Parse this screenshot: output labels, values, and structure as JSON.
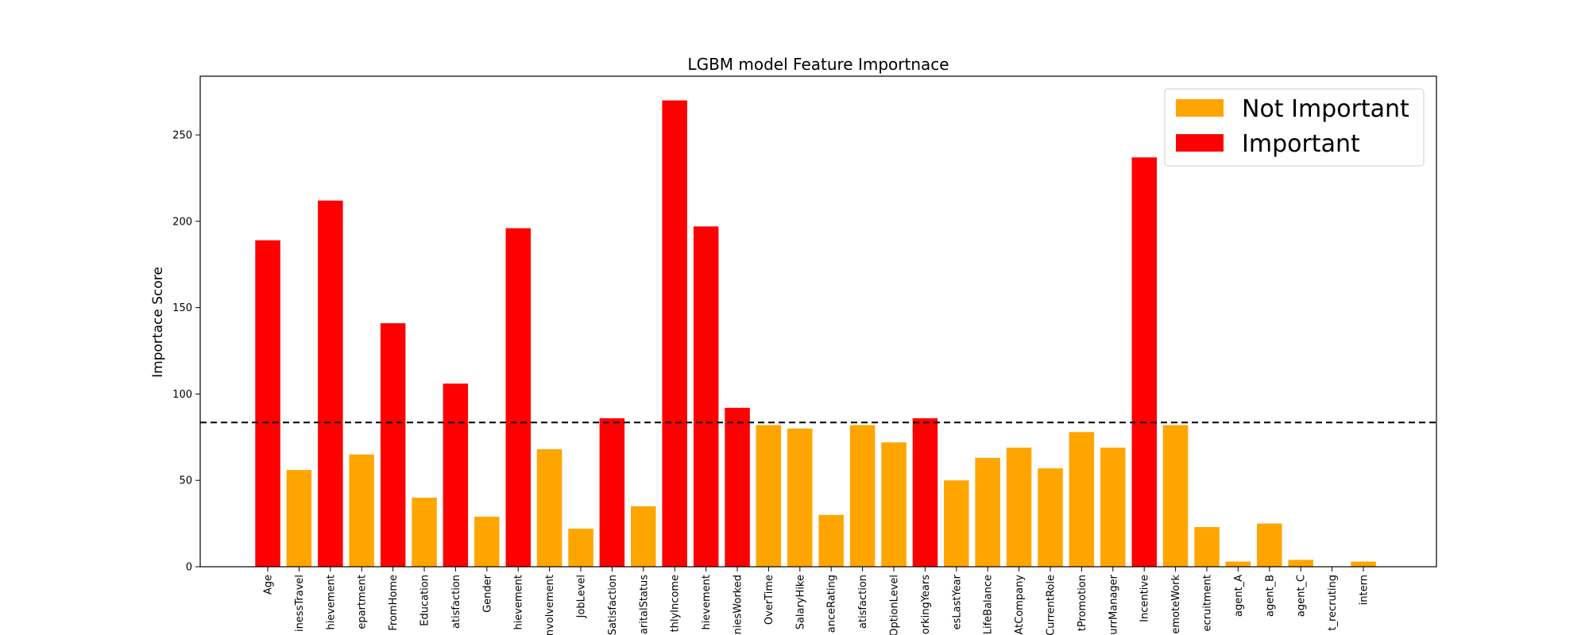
{
  "chart_data": {
    "type": "bar",
    "title": "LGBM model Feature Importnace",
    "xlabel": "",
    "ylabel": "Importace Score",
    "ylim": [
      0,
      284
    ],
    "yticks": [
      0,
      50,
      100,
      150,
      200,
      250
    ],
    "grid": false,
    "legend_position": "top-right",
    "threshold": 83.5,
    "categories": [
      "Age",
      "BusinessTravel",
      "Achievement",
      "Department",
      "WorkFromHome",
      "Education",
      "EnvironmentSatisfaction",
      "Gender",
      "Achievement",
      "JobInvolvement",
      "JobLevel",
      "JobSatisfaction",
      "MaritalStatus",
      "MonthlyIncome",
      "Achievement",
      "NumCompaniesWorked",
      "OverTime",
      "PercentSalaryHike",
      "PerformanceRating",
      "RelationshipSatisfaction",
      "StockOptionLevel",
      "TotalWorkingYears",
      "TrainingTimesLastYear",
      "WorkLifeBalance",
      "YearsAtCompany",
      "YearsInCurrentRole",
      "YearsSinceLastPromotion",
      "YearsWithCurrManager",
      "Incentive",
      "RemoteWork",
      "Recruitment",
      "agent_A",
      "agent_B",
      "agent_C",
      "direct_recruting",
      "intern"
    ],
    "tick_labels": [
      "Age",
      "inessTravel",
      "hievement",
      "epartment",
      "FromHome",
      "Education",
      "atisfaction",
      "Gender",
      "hievement",
      "nvolvement",
      "JobLevel",
      "Satisfaction",
      "aritalStatus",
      "thlyIncome",
      "hievement",
      "niesWorked",
      "OverTime",
      "SalaryHike",
      "anceRating",
      "atisfaction",
      "OptionLevel",
      "orkingYears",
      "esLastYear",
      "LifeBalance",
      "AtCompany",
      "CurrentRole",
      "tPromotion",
      "urrManager",
      "Incentive",
      "emoteWork",
      "ecruitment",
      "agent_A",
      "agent_B",
      "agent_C",
      "t_recruting",
      "intern"
    ],
    "values": [
      189,
      56,
      212,
      65,
      141,
      40,
      106,
      29,
      196,
      68,
      22,
      86,
      35,
      270,
      197,
      92,
      82,
      80,
      30,
      82,
      72,
      86,
      50,
      63,
      69,
      57,
      78,
      69,
      237,
      82,
      23,
      3,
      25,
      4,
      0,
      3
    ],
    "series": [
      {
        "name": "Not Important",
        "color": "#ffa500"
      },
      {
        "name": "Important",
        "color": "#ff0000"
      }
    ]
  }
}
